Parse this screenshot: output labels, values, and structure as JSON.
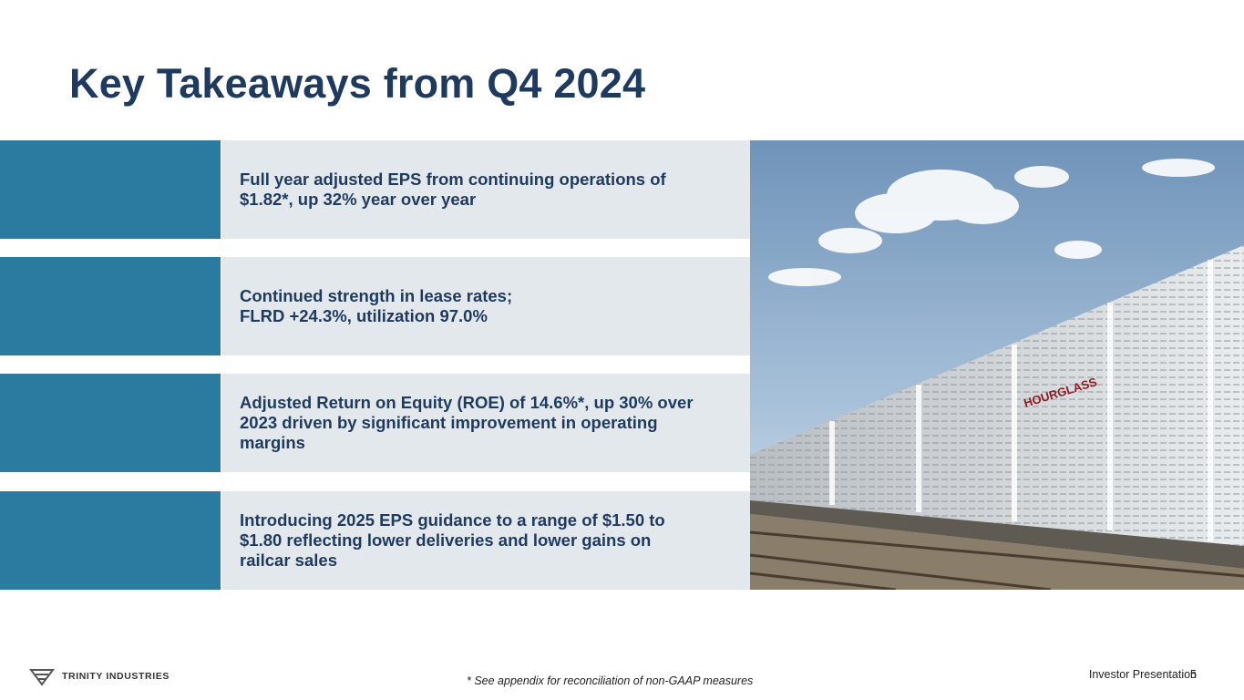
{
  "slide": {
    "title": "Key Takeaways from Q4 2024"
  },
  "takeaways": [
    "Full year adjusted EPS from continuing operations of\n$1.82*, up 32% year over year",
    "Continued strength in lease rates;\nFLRD +24.3%, utilization 97.0%",
    "Adjusted Return on Equity (ROE) of 14.6%*, up 30% over\n2023 driven by significant improvement in operating\nmargins",
    "Introducing 2025 EPS guidance to a range of $1.50 to\n$1.80 reflecting lower deliveries and lower gains on\nrailcar sales"
  ],
  "photo": {
    "railcar_brand": "HOURGLASS"
  },
  "footer": {
    "logo_text": "TRINITY INDUSTRIES",
    "footnote": "* See appendix for reconciliation of non-GAAP measures",
    "presentation_label": "Investor Presentation",
    "page_number": "5"
  },
  "colors": {
    "title": "#1f3a5f",
    "accent": "#2b7aa0",
    "panel": "#e3e8ec"
  }
}
